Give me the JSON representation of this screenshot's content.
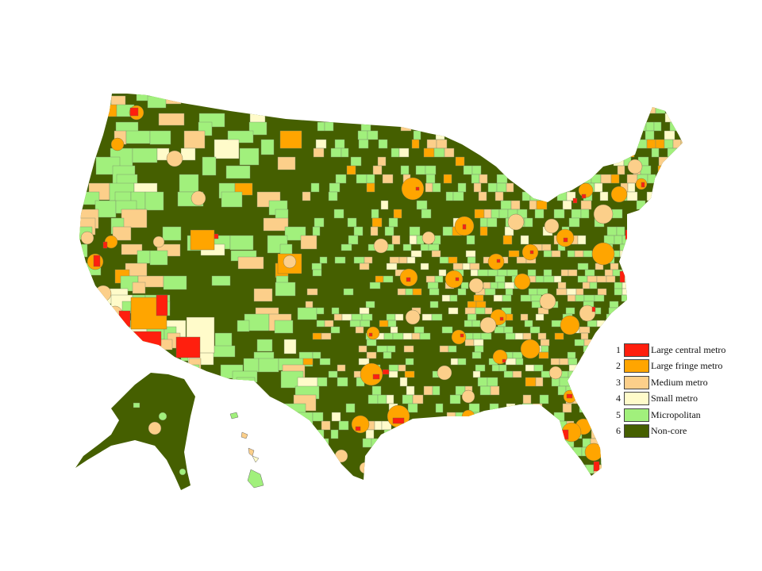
{
  "colors": {
    "large_central_metro": "#ff1f0e",
    "large_fringe_metro": "#ffa500",
    "medium_metro": "#fccf8a",
    "small_metro": "#fffbca",
    "micropolitan": "#a1f07c",
    "non_core": "#455f00",
    "border": "#7a8a6a"
  },
  "legend": [
    {
      "number": "1",
      "label": "Large  central metro",
      "color": "#ff1f0e"
    },
    {
      "number": "2",
      "label": "Large  fringe metro",
      "color": "#ffa500"
    },
    {
      "number": "3",
      "label": "Medium metro",
      "color": "#fccf8a"
    },
    {
      "number": "4",
      "label": "Small  metro",
      "color": "#fffbca"
    },
    {
      "number": "5",
      "label": "Micropolitan",
      "color": "#a1f07c"
    },
    {
      "number": "6",
      "label": "Non-core",
      "color": "#455f00"
    }
  ]
}
